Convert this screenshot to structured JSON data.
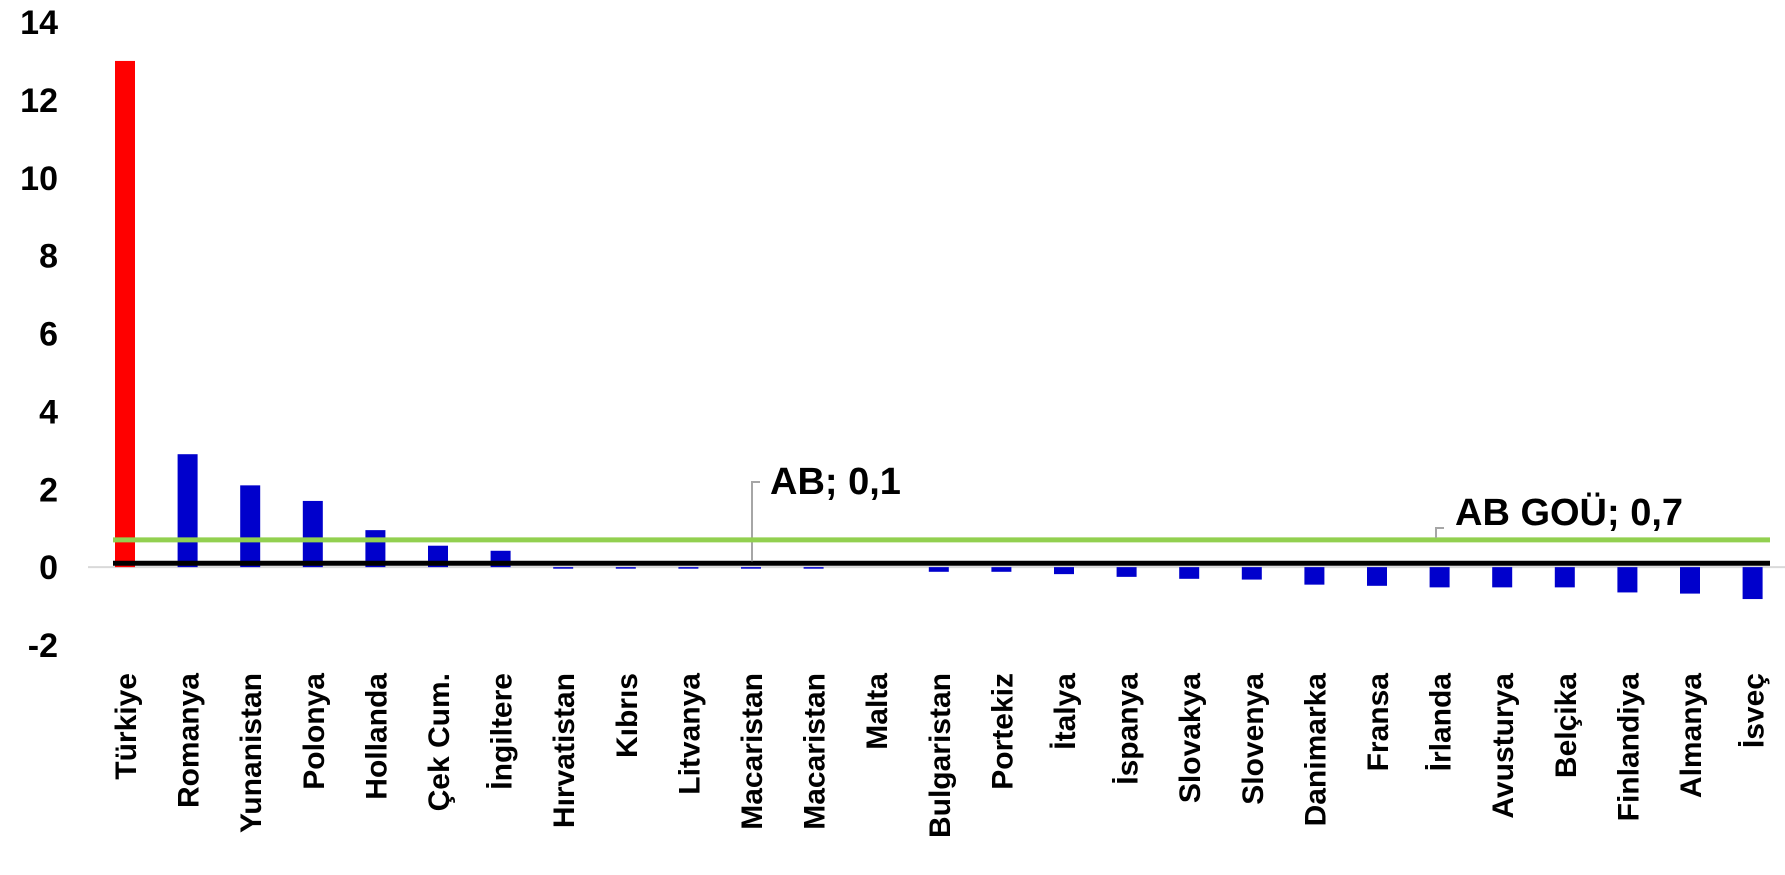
{
  "chart_data": {
    "type": "bar",
    "title": "",
    "xlabel": "",
    "ylabel": "",
    "ylim": [
      -2,
      14
    ],
    "yticks": [
      -2,
      0,
      2,
      4,
      6,
      8,
      10,
      12,
      14
    ],
    "grid": false,
    "categories": [
      "Türkiye",
      "Romanya",
      "Yunanistan",
      "Polonya",
      "Hollanda",
      "Çek Cum.",
      "İngiltere",
      "Hırvatistan",
      "Kıbrıs",
      "Litvanya",
      "Macaristan",
      "Macaristan",
      "Malta",
      "Bulgaristan",
      "Portekiz",
      "İtalya",
      "İspanya",
      "Slovakya",
      "Slovenya",
      "Danimarka",
      "Fransa",
      "İrlanda",
      "Avusturya",
      "Belçika",
      "Finlandiya",
      "Almanya",
      "İsveç"
    ],
    "values": [
      13.0,
      2.9,
      2.1,
      1.7,
      0.95,
      0.55,
      0.42,
      -0.04,
      -0.04,
      -0.04,
      -0.04,
      -0.04,
      0.0,
      -0.12,
      -0.12,
      -0.18,
      -0.25,
      -0.3,
      -0.32,
      -0.45,
      -0.48,
      -0.52,
      -0.52,
      -0.52,
      -0.65,
      -0.68,
      -0.82
    ],
    "highlight": {
      "category": "Türkiye",
      "color": "#ff0000"
    },
    "bar_color": "#0000cc",
    "reference_lines": [
      {
        "label": "AB; 0,1",
        "value": 0.1,
        "color": "#000000"
      },
      {
        "label": "AB GOÜ; 0,7",
        "value": 0.7,
        "color": "#92d050"
      }
    ]
  }
}
